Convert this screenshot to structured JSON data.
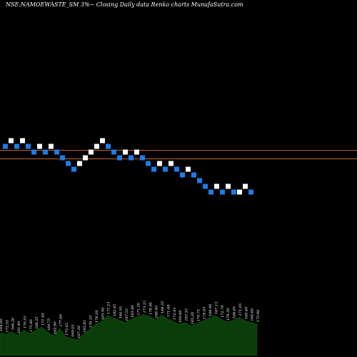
{
  "chart_data": {
    "type": "renko",
    "title": "NSE:NAMOEWASTE_SM 3%~ Closing Daily data Renko charts MunafaSutra.com",
    "colors": {
      "background": "#000000",
      "up_brick": "#ffffff",
      "down_brick": "#1e7bea",
      "reference_line": "#c0602a",
      "volume_fill": "#0b3d0b",
      "text": "#ffffff"
    },
    "bricks": [
      {
        "col": 0,
        "level": 0,
        "dir": "down"
      },
      {
        "col": 1,
        "level": 1,
        "dir": "up"
      },
      {
        "col": 2,
        "level": 0,
        "dir": "down"
      },
      {
        "col": 3,
        "level": 1,
        "dir": "up"
      },
      {
        "col": 4,
        "level": 0,
        "dir": "down"
      },
      {
        "col": 5,
        "level": -1,
        "dir": "down"
      },
      {
        "col": 6,
        "level": 0,
        "dir": "up"
      },
      {
        "col": 7,
        "level": -1,
        "dir": "down"
      },
      {
        "col": 8,
        "level": 0,
        "dir": "up"
      },
      {
        "col": 9,
        "level": -1,
        "dir": "down"
      },
      {
        "col": 10,
        "level": -2,
        "dir": "down"
      },
      {
        "col": 11,
        "level": -3,
        "dir": "down"
      },
      {
        "col": 12,
        "level": -4,
        "dir": "down"
      },
      {
        "col": 13,
        "level": -3,
        "dir": "up"
      },
      {
        "col": 14,
        "level": -2,
        "dir": "up"
      },
      {
        "col": 15,
        "level": -1,
        "dir": "up"
      },
      {
        "col": 16,
        "level": 0,
        "dir": "up"
      },
      {
        "col": 17,
        "level": 1,
        "dir": "up"
      },
      {
        "col": 18,
        "level": 0,
        "dir": "down"
      },
      {
        "col": 19,
        "level": -1,
        "dir": "down"
      },
      {
        "col": 20,
        "level": -2,
        "dir": "down"
      },
      {
        "col": 21,
        "level": -1,
        "dir": "up"
      },
      {
        "col": 22,
        "level": -2,
        "dir": "down"
      },
      {
        "col": 23,
        "level": -1,
        "dir": "up"
      },
      {
        "col": 24,
        "level": -2,
        "dir": "down"
      },
      {
        "col": 25,
        "level": -3,
        "dir": "down"
      },
      {
        "col": 26,
        "level": -4,
        "dir": "down"
      },
      {
        "col": 27,
        "level": -3,
        "dir": "up"
      },
      {
        "col": 28,
        "level": -4,
        "dir": "down"
      },
      {
        "col": 29,
        "level": -3,
        "dir": "up"
      },
      {
        "col": 30,
        "level": -4,
        "dir": "down"
      },
      {
        "col": 31,
        "level": -5,
        "dir": "down"
      },
      {
        "col": 32,
        "level": -4,
        "dir": "up"
      },
      {
        "col": 33,
        "level": -5,
        "dir": "down"
      },
      {
        "col": 34,
        "level": -6,
        "dir": "down"
      },
      {
        "col": 35,
        "level": -7,
        "dir": "down"
      },
      {
        "col": 36,
        "level": -8,
        "dir": "down"
      },
      {
        "col": 37,
        "level": -7,
        "dir": "up"
      },
      {
        "col": 38,
        "level": -8,
        "dir": "down"
      },
      {
        "col": 39,
        "level": -7,
        "dir": "up"
      },
      {
        "col": 40,
        "level": -8,
        "dir": "down"
      },
      {
        "col": 41,
        "level": -8,
        "dir": "up"
      },
      {
        "col": 42,
        "level": -7,
        "dir": "up"
      },
      {
        "col": 43,
        "level": -8,
        "dir": "down"
      }
    ],
    "volume_values": [
      40,
      38,
      42,
      36,
      45,
      39,
      44,
      50,
      41,
      35,
      48,
      33,
      30,
      28,
      38,
      46,
      55,
      60,
      70,
      66,
      62,
      58,
      64,
      68,
      72,
      69,
      63,
      71,
      65,
      60,
      55,
      58,
      52,
      57,
      61,
      66,
      70,
      64,
      59,
      62,
      67,
      61,
      58,
      56
    ],
    "volume_labels": [
      "164.00",
      "172.35",
      "166.20",
      "161.40",
      "170.55",
      "175.80",
      "168.25",
      "171.40",
      "164.75",
      "162.90",
      "177.60",
      "173.45",
      "169.05",
      "167.30",
      "165.85",
      "176.10",
      "176.20",
      "165.90",
      "171.25",
      "182.95",
      "164.95",
      "167.55",
      "163.80",
      "171.30",
      "173.15",
      "178.90",
      "166.40",
      "168.35",
      "171.60",
      "172.45",
      "169.80",
      "163.35",
      "165.20",
      "170.75",
      "174.05",
      "168.90",
      "167.15",
      "172.70",
      "176.50",
      "166.85",
      "171.05",
      "169.40",
      "164.60",
      "173.90"
    ]
  }
}
